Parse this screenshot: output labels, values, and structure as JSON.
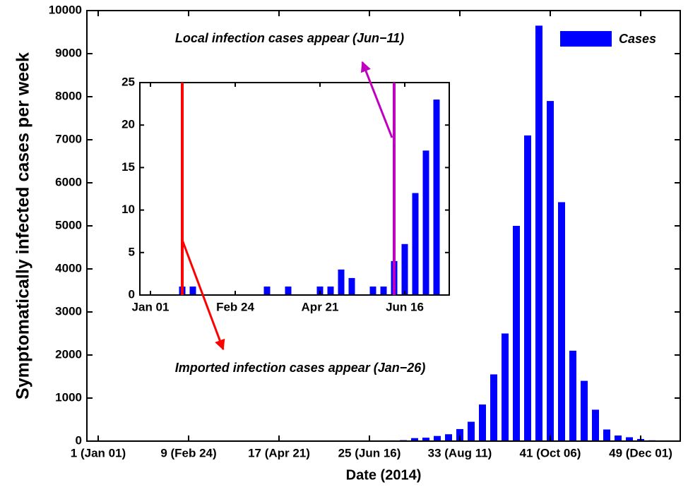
{
  "chart_data": [
    {
      "type": "bar",
      "color": "#0000ff",
      "ylabel": "Symptomatically infected cases per week",
      "xlabel": "Date (2014)",
      "legend": "upper right",
      "x": [
        1,
        2,
        3,
        4,
        5,
        6,
        7,
        8,
        9,
        10,
        11,
        12,
        13,
        14,
        15,
        16,
        17,
        18,
        19,
        20,
        21,
        22,
        23,
        24,
        25,
        26,
        27,
        28,
        29,
        30,
        31,
        32,
        33,
        34,
        35,
        36,
        37,
        38,
        39,
        40,
        41,
        42,
        43,
        44,
        45,
        46,
        47,
        48,
        49,
        50,
        51,
        52
      ],
      "series": [
        {
          "name": "Cases",
          "color": "#0000ff",
          "values": [
            0,
            0,
            0,
            1,
            1,
            0,
            0,
            0,
            0,
            0,
            0,
            1,
            0,
            1,
            0,
            0,
            1,
            1,
            3,
            2,
            0,
            1,
            1,
            4,
            6,
            12,
            17,
            23,
            70,
            80,
            120,
            160,
            280,
            450,
            850,
            1550,
            2500,
            5000,
            7100,
            9650,
            7900,
            5550,
            2100,
            1400,
            730,
            270,
            130,
            90,
            50,
            20,
            10,
            5
          ]
        }
      ],
      "xlim": [
        0,
        52.5
      ],
      "xticks": [
        {
          "value": 1,
          "label": "1 (Jan 01)"
        },
        {
          "value": 9,
          "label": "9 (Feb 24)"
        },
        {
          "value": 17,
          "label": "17 (Apr 21)"
        },
        {
          "value": 25,
          "label": "25 (Jun 16)"
        },
        {
          "value": 33,
          "label": "33 (Aug 11)"
        },
        {
          "value": 41,
          "label": "41 (Oct 06)"
        },
        {
          "value": 49,
          "label": "49 (Dec 01)"
        }
      ],
      "ylim": [
        0,
        10000
      ],
      "yticks": [
        0,
        1000,
        2000,
        3000,
        4000,
        5000,
        6000,
        7000,
        8000,
        9000,
        10000
      ]
    },
    {
      "type": "bar",
      "color": "#0000ff",
      "x": [
        1,
        2,
        3,
        4,
        5,
        6,
        7,
        8,
        9,
        10,
        11,
        12,
        13,
        14,
        15,
        16,
        17,
        18,
        19,
        20,
        21,
        22,
        23,
        24,
        25,
        26,
        27,
        28
      ],
      "values": [
        0,
        0,
        0,
        1,
        1,
        0,
        0,
        0,
        0,
        0,
        0,
        1,
        0,
        1,
        0,
        0,
        1,
        1,
        3,
        2,
        0,
        1,
        1,
        4,
        6,
        12,
        17,
        23
      ],
      "xlim": [
        0,
        29.2
      ],
      "xticks": [
        {
          "value": 1,
          "label": "Jan 01"
        },
        {
          "value": 9,
          "label": "Feb 24"
        },
        {
          "value": 17,
          "label": "Apr 21"
        },
        {
          "value": 25,
          "label": "Jun 16"
        }
      ],
      "ylim": [
        0,
        25
      ],
      "yticks": [
        0,
        5,
        10,
        15,
        20,
        25
      ],
      "annotations": [
        {
          "text": "Imported infection cases appear (Jan−26)",
          "x": 4,
          "color": "#ff0000"
        },
        {
          "text": "Local infection cases appear (Jun−11)",
          "x": 24,
          "color": "#bf00bf"
        }
      ]
    }
  ]
}
